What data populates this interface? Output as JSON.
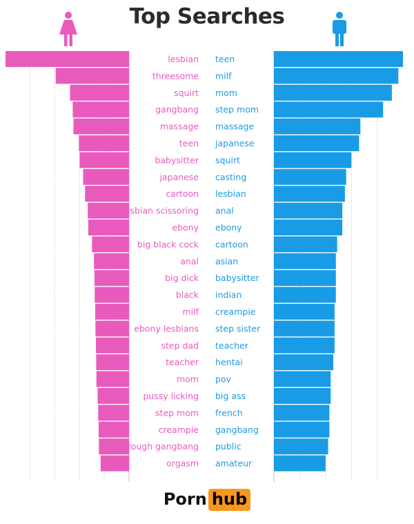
{
  "colors": {
    "female": "#e85bbd",
    "male": "#1a9be6",
    "grid": "#c8c8c8"
  },
  "icons": {
    "female": "woman-icon",
    "male": "man-icon"
  },
  "logo": {
    "word": "Porn",
    "badge": "hub"
  },
  "chart_data": {
    "type": "bar",
    "title": "Top Searches",
    "grid": true,
    "female": {
      "terms": [
        "lesbian",
        "threesome",
        "squirt",
        "gangbang",
        "massage",
        "teen",
        "babysitter",
        "japanese",
        "cartoon",
        "lesbian scissoring",
        "ebony",
        "big black cock",
        "anal",
        "big dick",
        "black",
        "milf",
        "ebony lesbians",
        "step dad",
        "teacher",
        "mom",
        "pussy licking",
        "step mom",
        "creampie",
        "rough gangbang",
        "orgasm"
      ],
      "values": [
        5.0,
        2.97,
        2.39,
        2.28,
        2.25,
        2.03,
        2.0,
        1.86,
        1.78,
        1.67,
        1.65,
        1.5,
        1.42,
        1.4,
        1.39,
        1.37,
        1.36,
        1.34,
        1.33,
        1.32,
        1.27,
        1.25,
        1.23,
        1.22,
        1.15
      ]
    },
    "male": {
      "terms": [
        "teen",
        "milf",
        "mom",
        "step mom",
        "massage",
        "japanese",
        "squirt",
        "casting",
        "lesbian",
        "anal",
        "ebony",
        "cartoon",
        "asian",
        "babysitter",
        "indian",
        "creampie",
        "step sister",
        "teacher",
        "hentai",
        "pov",
        "big ass",
        "french",
        "gangbang",
        "public",
        "amateur"
      ],
      "values": [
        5.0,
        4.82,
        4.57,
        4.23,
        3.35,
        3.3,
        3.0,
        2.8,
        2.75,
        2.65,
        2.65,
        2.45,
        2.4,
        2.4,
        2.4,
        2.35,
        2.35,
        2.35,
        2.3,
        2.2,
        2.2,
        2.15,
        2.15,
        2.1,
        2.0
      ]
    }
  }
}
